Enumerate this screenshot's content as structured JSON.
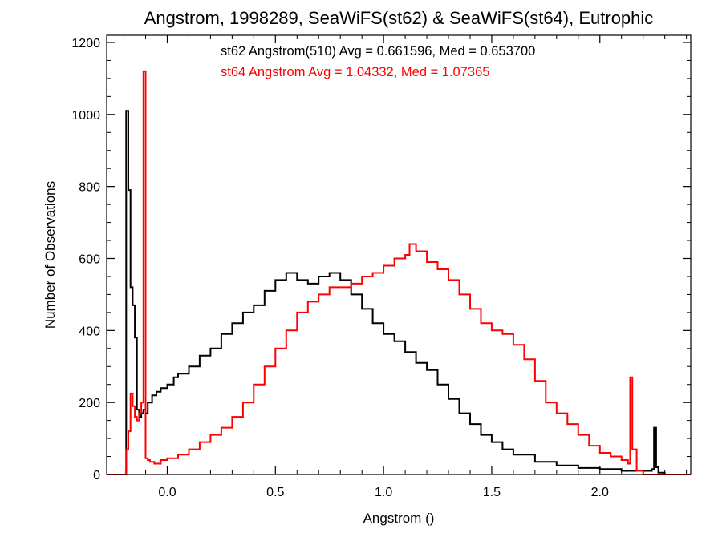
{
  "chart_data": {
    "type": "line",
    "step": true,
    "title": "Angstrom, 1998289, SeaWiFS(st62) & SeaWiFS(st64), Eutrophic",
    "xlabel": "Angstrom ()",
    "ylabel": "Number of Observations",
    "xlim": [
      -0.28,
      2.42
    ],
    "ylim": [
      0,
      1220
    ],
    "xticks": [
      0.0,
      0.5,
      1.0,
      1.5,
      2.0
    ],
    "xtick_labels": [
      "0.0",
      "0.5",
      "1.0",
      "1.5",
      "2.0"
    ],
    "yticks": [
      0,
      200,
      400,
      600,
      800,
      1000,
      1200
    ],
    "ytick_labels": [
      "0",
      "200",
      "400",
      "600",
      "800",
      "1000",
      "1200"
    ],
    "grid": false,
    "annotations": [
      {
        "text": "st62 Angstrom(510) Avg = 0.661596, Med = 0.653700",
        "color": "#000000"
      },
      {
        "text": "st64 Angstrom Avg = 1.04332, Med = 1.07365",
        "color": "#ff0000"
      }
    ],
    "series": [
      {
        "color": "#000000",
        "x": [
          -0.28,
          -0.2,
          -0.19,
          -0.18,
          -0.17,
          -0.16,
          -0.15,
          -0.14,
          -0.13,
          -0.12,
          -0.11,
          -0.1,
          -0.09,
          -0.07,
          -0.05,
          -0.03,
          0.0,
          0.03,
          0.05,
          0.1,
          0.15,
          0.2,
          0.25,
          0.3,
          0.35,
          0.4,
          0.45,
          0.5,
          0.55,
          0.6,
          0.65,
          0.7,
          0.75,
          0.8,
          0.85,
          0.9,
          0.95,
          1.0,
          1.05,
          1.1,
          1.15,
          1.2,
          1.25,
          1.3,
          1.35,
          1.4,
          1.45,
          1.5,
          1.55,
          1.6,
          1.7,
          1.8,
          1.9,
          2.0,
          2.1,
          2.2,
          2.24,
          2.25,
          2.26,
          2.27,
          2.3,
          2.42
        ],
        "y": [
          0,
          0,
          1010,
          790,
          520,
          470,
          380,
          180,
          160,
          170,
          180,
          170,
          200,
          220,
          230,
          240,
          250,
          270,
          280,
          300,
          330,
          350,
          390,
          420,
          450,
          470,
          510,
          540,
          560,
          540,
          530,
          550,
          560,
          540,
          500,
          460,
          420,
          390,
          370,
          340,
          310,
          290,
          250,
          210,
          170,
          140,
          110,
          90,
          70,
          55,
          35,
          25,
          18,
          15,
          10,
          10,
          15,
          130,
          20,
          5,
          0,
          0
        ]
      },
      {
        "color": "#ff0000",
        "x": [
          -0.28,
          -0.2,
          -0.19,
          -0.18,
          -0.17,
          -0.16,
          -0.15,
          -0.14,
          -0.13,
          -0.12,
          -0.11,
          -0.1,
          -0.09,
          -0.08,
          -0.06,
          -0.03,
          0.0,
          0.05,
          0.1,
          0.15,
          0.2,
          0.25,
          0.3,
          0.35,
          0.4,
          0.45,
          0.5,
          0.55,
          0.6,
          0.65,
          0.7,
          0.75,
          0.8,
          0.85,
          0.9,
          0.95,
          1.0,
          1.05,
          1.1,
          1.12,
          1.15,
          1.2,
          1.25,
          1.3,
          1.35,
          1.4,
          1.45,
          1.5,
          1.55,
          1.6,
          1.65,
          1.7,
          1.75,
          1.8,
          1.85,
          1.9,
          1.95,
          2.0,
          2.05,
          2.1,
          2.13,
          2.14,
          2.15,
          2.17,
          2.2,
          2.25,
          2.42
        ],
        "y": [
          0,
          0,
          70,
          120,
          225,
          190,
          160,
          150,
          170,
          200,
          1120,
          45,
          40,
          35,
          30,
          40,
          45,
          55,
          70,
          90,
          110,
          130,
          160,
          200,
          250,
          300,
          350,
          400,
          450,
          480,
          500,
          520,
          520,
          530,
          550,
          560,
          580,
          600,
          610,
          640,
          620,
          590,
          570,
          540,
          500,
          460,
          420,
          400,
          390,
          360,
          320,
          260,
          200,
          170,
          140,
          110,
          80,
          60,
          50,
          40,
          30,
          270,
          70,
          10,
          0,
          0,
          0
        ]
      }
    ]
  }
}
